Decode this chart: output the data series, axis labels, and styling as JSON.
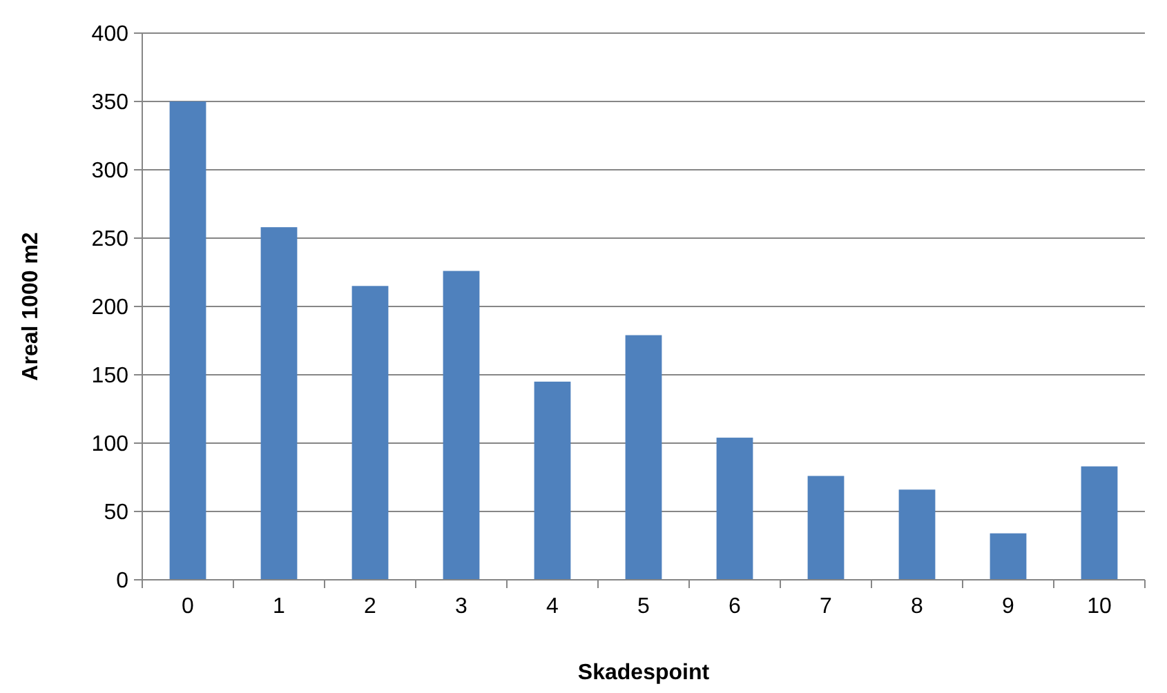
{
  "chart_data": {
    "type": "bar",
    "xlabel": "Skadespoint",
    "ylabel": "Areal 1000 m2",
    "categories": [
      "0",
      "1",
      "2",
      "3",
      "4",
      "5",
      "6",
      "7",
      "8",
      "9",
      "10"
    ],
    "values": [
      350,
      258,
      215,
      226,
      145,
      179,
      104,
      76,
      66,
      34,
      83
    ],
    "color": "#4f81bd",
    "ylim": [
      0,
      400
    ],
    "yticks": [
      0,
      50,
      100,
      150,
      200,
      250,
      300,
      350,
      400
    ],
    "grid": "y"
  }
}
